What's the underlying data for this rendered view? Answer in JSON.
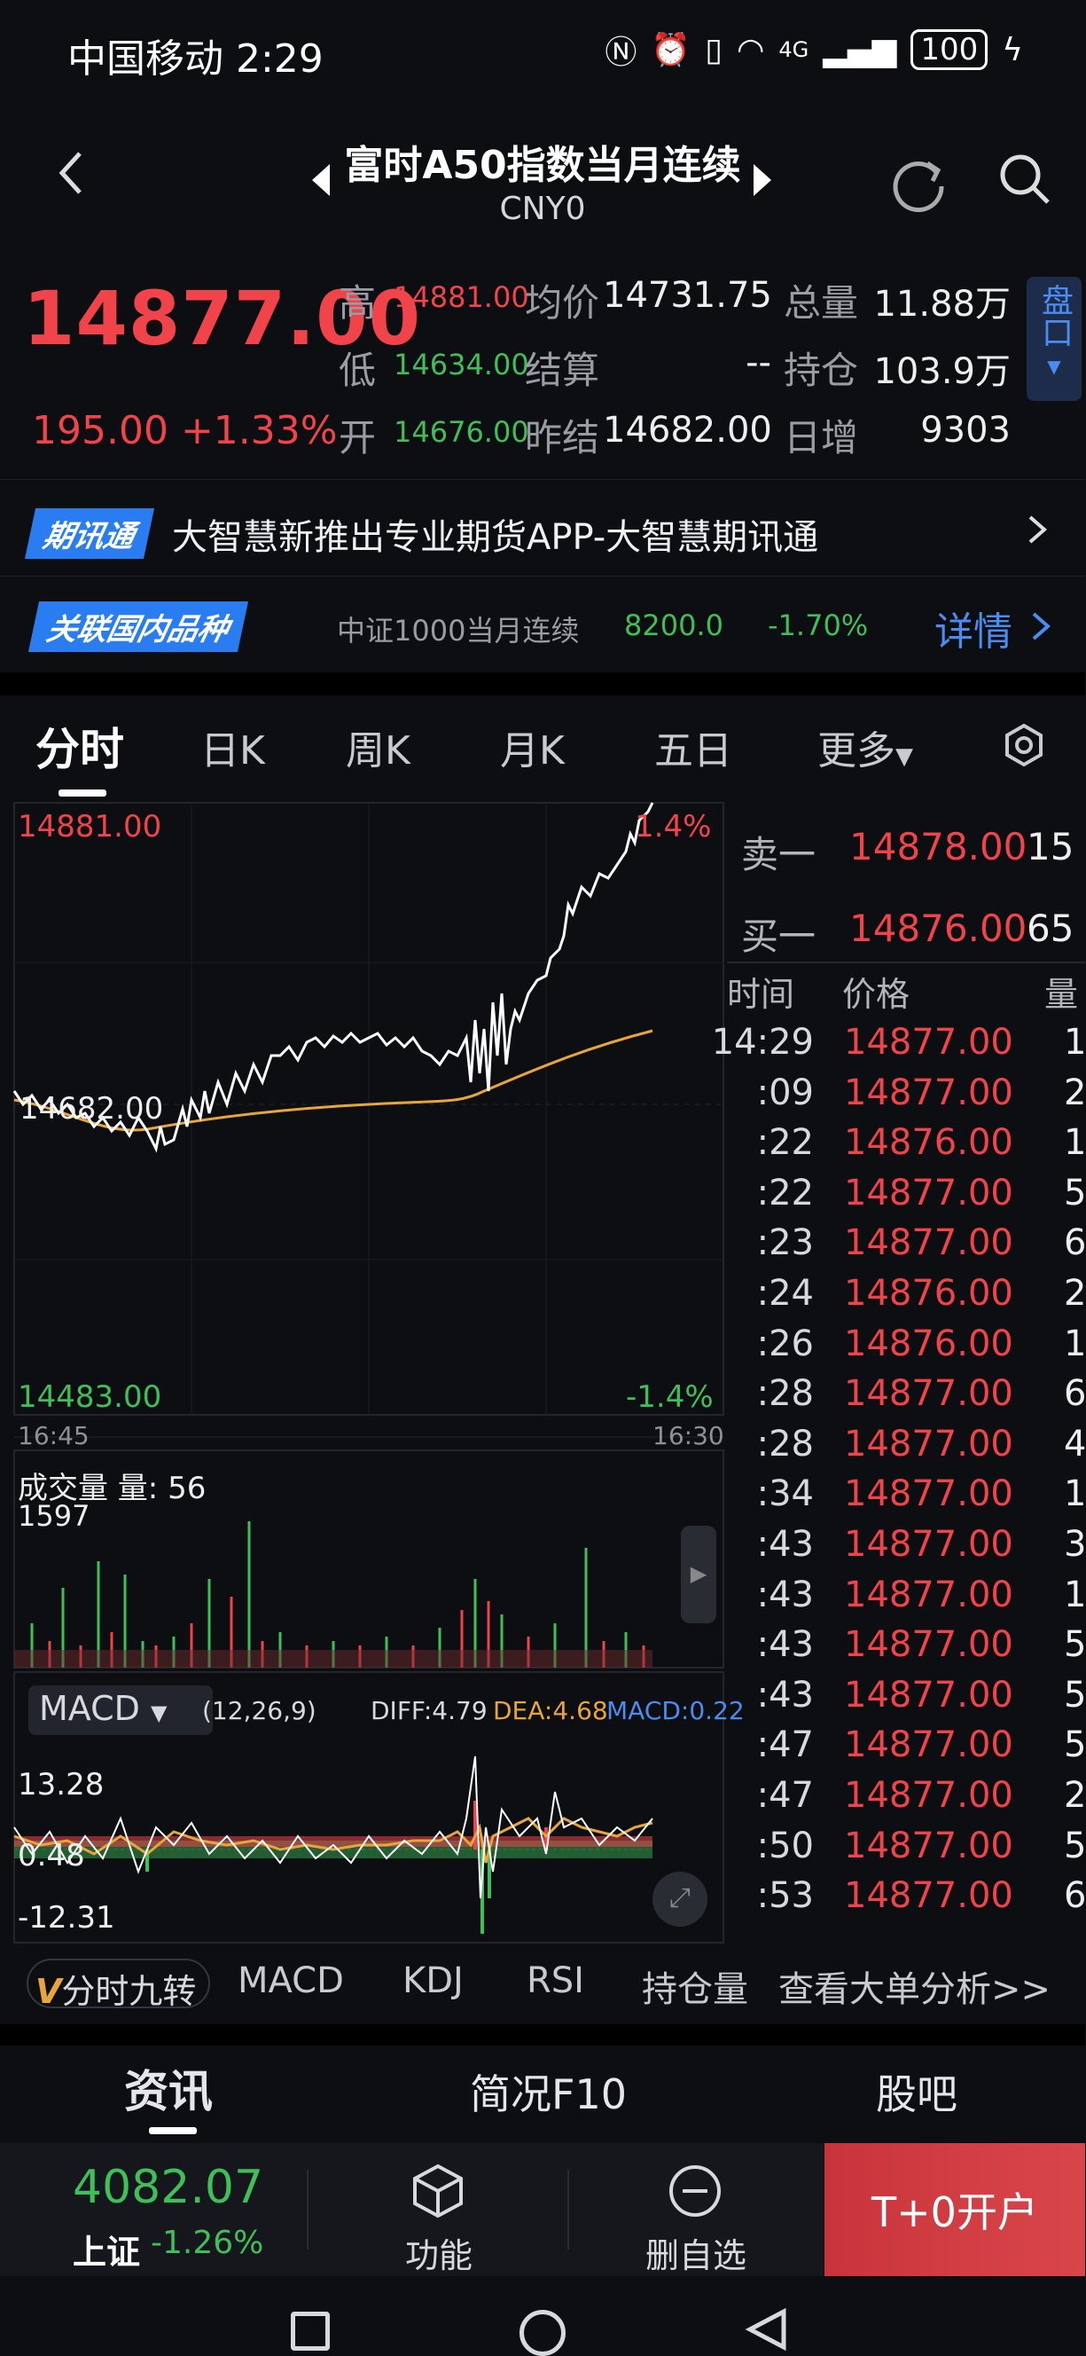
{
  "status_bar": {
    "carrier_time": "中国移动 2:29",
    "signal": "4G",
    "battery": "100"
  },
  "header": {
    "title": "富时A50指数当月连续",
    "subtitle": "CNY0"
  },
  "quote": {
    "price": "14877.00",
    "change": "195.00 +1.33%",
    "high_label": "高",
    "high": "14881.00",
    "low_label": "低",
    "low": "14634.00",
    "open_label": "开",
    "open": "14676.00",
    "avg_label": "均价",
    "avg": "14731.75",
    "settle_label": "结算",
    "settle": "--",
    "prev_settle_label": "昨结",
    "prev_settle": "14682.00",
    "volume_label": "总量",
    "volume": "11.88万",
    "oi_label": "持仓",
    "oi": "103.9万",
    "daily_inc_label": "日增",
    "daily_inc": "9303",
    "pankou": "盘口"
  },
  "banner1": {
    "tag": "期讯通",
    "text": "大智慧新推出专业期货APP-大智慧期讯通"
  },
  "banner2": {
    "tag": "关联国内品种",
    "name": "中证1000当月连续",
    "price": "8200.0",
    "pct": "-1.70%",
    "details": "详情"
  },
  "tabs": [
    "分时",
    "日K",
    "周K",
    "月K",
    "五日",
    "更多"
  ],
  "chart": {
    "top_price": "14881.00",
    "top_pct": "1.4%",
    "mid_price": "14682.00",
    "bottom_price": "14483.00",
    "bottom_pct": "-1.4%",
    "time_start": "16:45",
    "time_end": "16:30",
    "volume_label": "成交量 量: 56",
    "volume_max": "1597",
    "macd_label": "MACD",
    "macd_params": "(12,26,9)",
    "diff": "DIFF:4.79",
    "dea": "DEA:4.68",
    "macd_val": "MACD:0.22",
    "macd_top": "13.28",
    "macd_mid": "0.48",
    "macd_bottom": "-12.31"
  },
  "order_book": {
    "ask_label": "卖一",
    "ask_price": "14878.00",
    "ask_qty": "15",
    "bid_label": "买一",
    "bid_price": "14876.00",
    "bid_qty": "65",
    "col_time": "时间",
    "col_price": "价格",
    "col_qty": "量",
    "ticks": [
      {
        "t": "14:29",
        "p": "14877.00",
        "v": "1"
      },
      {
        "t": ":09",
        "p": "14877.00",
        "v": "2"
      },
      {
        "t": ":22",
        "p": "14876.00",
        "v": "1"
      },
      {
        "t": ":22",
        "p": "14877.00",
        "v": "5"
      },
      {
        "t": ":23",
        "p": "14877.00",
        "v": "6"
      },
      {
        "t": ":24",
        "p": "14876.00",
        "v": "2"
      },
      {
        "t": ":26",
        "p": "14876.00",
        "v": "1"
      },
      {
        "t": ":28",
        "p": "14877.00",
        "v": "6"
      },
      {
        "t": ":28",
        "p": "14877.00",
        "v": "4"
      },
      {
        "t": ":34",
        "p": "14877.00",
        "v": "1"
      },
      {
        "t": ":43",
        "p": "14877.00",
        "v": "3"
      },
      {
        "t": ":43",
        "p": "14877.00",
        "v": "1"
      },
      {
        "t": ":43",
        "p": "14877.00",
        "v": "5"
      },
      {
        "t": ":43",
        "p": "14877.00",
        "v": "5"
      },
      {
        "t": ":47",
        "p": "14877.00",
        "v": "5"
      },
      {
        "t": ":47",
        "p": "14877.00",
        "v": "2"
      },
      {
        "t": ":50",
        "p": "14877.00",
        "v": "5"
      },
      {
        "t": ":53",
        "p": "14877.00",
        "v": "6"
      }
    ]
  },
  "indicators": {
    "nine": "分时九转",
    "macd": "MACD",
    "kdj": "KDJ",
    "rsi": "RSI",
    "oi": "持仓量",
    "big_order": "查看大单分析>>"
  },
  "sections": [
    "资讯",
    "简况F10",
    "股吧"
  ],
  "bottom_nav": {
    "index_value": "4082.07",
    "index_name": "上证",
    "index_pct": "-1.26%",
    "func": "功能",
    "remove": "删自选",
    "t0": "T+0开户"
  }
}
